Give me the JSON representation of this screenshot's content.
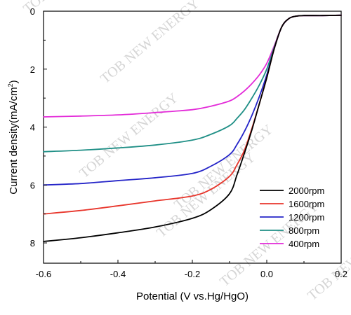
{
  "chart_data": {
    "type": "line",
    "title": "",
    "xlabel": "Potential (V vs.Hg/HgO)",
    "ylabel_main": "Current density(mA/cm",
    "ylabel_sup": "2",
    "ylabel_end": ")",
    "xlim": [
      -0.6,
      0.2
    ],
    "ylim": [
      0,
      8.7
    ],
    "y_inverted": true,
    "x_ticks": [
      -0.6,
      -0.4,
      -0.2,
      0.0,
      0.2
    ],
    "x_tick_labels": [
      "-0.6",
      "-0.4",
      "-0.2",
      "0.0",
      "0.2"
    ],
    "y_ticks": [
      0,
      2,
      4,
      6,
      8
    ],
    "y_tick_labels": [
      "0",
      "2",
      "4",
      "6",
      "8"
    ],
    "grid": false,
    "legend_position": "bottom-right",
    "watermark": "TOB NEW ENERGY",
    "series": [
      {
        "name": "2000rpm",
        "color": "#000000",
        "x": [
          -0.6,
          -0.5,
          -0.4,
          -0.3,
          -0.2,
          -0.15,
          -0.1,
          -0.08,
          -0.06,
          -0.04,
          -0.02,
          0.0,
          0.02,
          0.04,
          0.06,
          0.08,
          0.1,
          0.15,
          0.2
        ],
        "y": [
          7.95,
          7.82,
          7.65,
          7.45,
          7.15,
          6.85,
          6.3,
          5.65,
          4.9,
          4.1,
          3.2,
          2.3,
          1.3,
          0.55,
          0.25,
          0.17,
          0.15,
          0.15,
          0.14
        ]
      },
      {
        "name": "1600rpm",
        "color": "#e8352b",
        "x": [
          -0.6,
          -0.5,
          -0.4,
          -0.3,
          -0.2,
          -0.15,
          -0.1,
          -0.08,
          -0.06,
          -0.04,
          -0.02,
          0.0,
          0.02,
          0.04,
          0.06,
          0.08,
          0.1,
          0.15,
          0.2
        ],
        "y": [
          7.0,
          6.88,
          6.72,
          6.55,
          6.38,
          6.15,
          5.7,
          5.3,
          4.8,
          4.05,
          3.2,
          2.3,
          1.3,
          0.55,
          0.25,
          0.17,
          0.15,
          0.15,
          0.14
        ]
      },
      {
        "name": "1200rpm",
        "color": "#2424c8",
        "x": [
          -0.6,
          -0.5,
          -0.4,
          -0.3,
          -0.2,
          -0.15,
          -0.1,
          -0.08,
          -0.06,
          -0.04,
          -0.02,
          0.0,
          0.02,
          0.04,
          0.06,
          0.08,
          0.1,
          0.15,
          0.2
        ],
        "y": [
          6.0,
          5.95,
          5.85,
          5.75,
          5.6,
          5.35,
          4.95,
          4.6,
          4.15,
          3.6,
          2.95,
          2.2,
          1.3,
          0.55,
          0.25,
          0.17,
          0.15,
          0.15,
          0.14
        ]
      },
      {
        "name": "800rpm",
        "color": "#1f8f86",
        "x": [
          -0.6,
          -0.5,
          -0.4,
          -0.3,
          -0.2,
          -0.15,
          -0.1,
          -0.08,
          -0.06,
          -0.04,
          -0.02,
          0.0,
          0.02,
          0.04,
          0.06,
          0.08,
          0.1,
          0.15,
          0.2
        ],
        "y": [
          4.85,
          4.8,
          4.72,
          4.62,
          4.45,
          4.25,
          3.95,
          3.7,
          3.4,
          3.0,
          2.55,
          2.0,
          1.25,
          0.55,
          0.25,
          0.17,
          0.15,
          0.15,
          0.14
        ]
      },
      {
        "name": "400rpm",
        "color": "#e32ad8",
        "x": [
          -0.6,
          -0.5,
          -0.4,
          -0.3,
          -0.2,
          -0.15,
          -0.1,
          -0.08,
          -0.06,
          -0.04,
          -0.02,
          0.0,
          0.02,
          0.04,
          0.06,
          0.08,
          0.1,
          0.15,
          0.2
        ],
        "y": [
          3.65,
          3.62,
          3.58,
          3.5,
          3.4,
          3.28,
          3.1,
          2.95,
          2.75,
          2.5,
          2.2,
          1.8,
          1.2,
          0.55,
          0.25,
          0.17,
          0.15,
          0.15,
          0.14
        ]
      }
    ]
  }
}
